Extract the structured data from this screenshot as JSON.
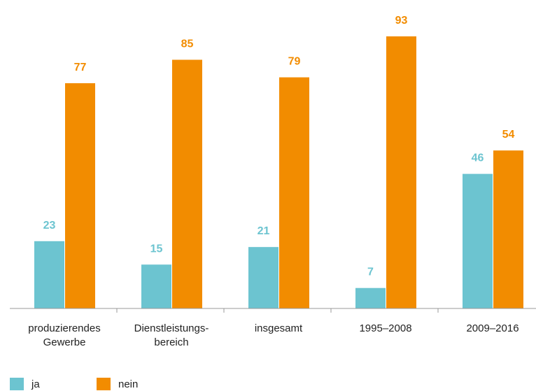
{
  "chart_data": {
    "type": "bar",
    "categories": [
      "produzierendes\nGewerbe",
      "Dienstleistungs-\nbereich",
      "insgesamt",
      "1995–2008",
      "2009–2016"
    ],
    "series": [
      {
        "name": "ja",
        "color": "#6cc4d0",
        "values": [
          23,
          15,
          21,
          7,
          46
        ]
      },
      {
        "name": "nein",
        "color": "#f28c00",
        "values": [
          77,
          85,
          79,
          93,
          54
        ]
      }
    ],
    "legend": "bottom-left"
  }
}
